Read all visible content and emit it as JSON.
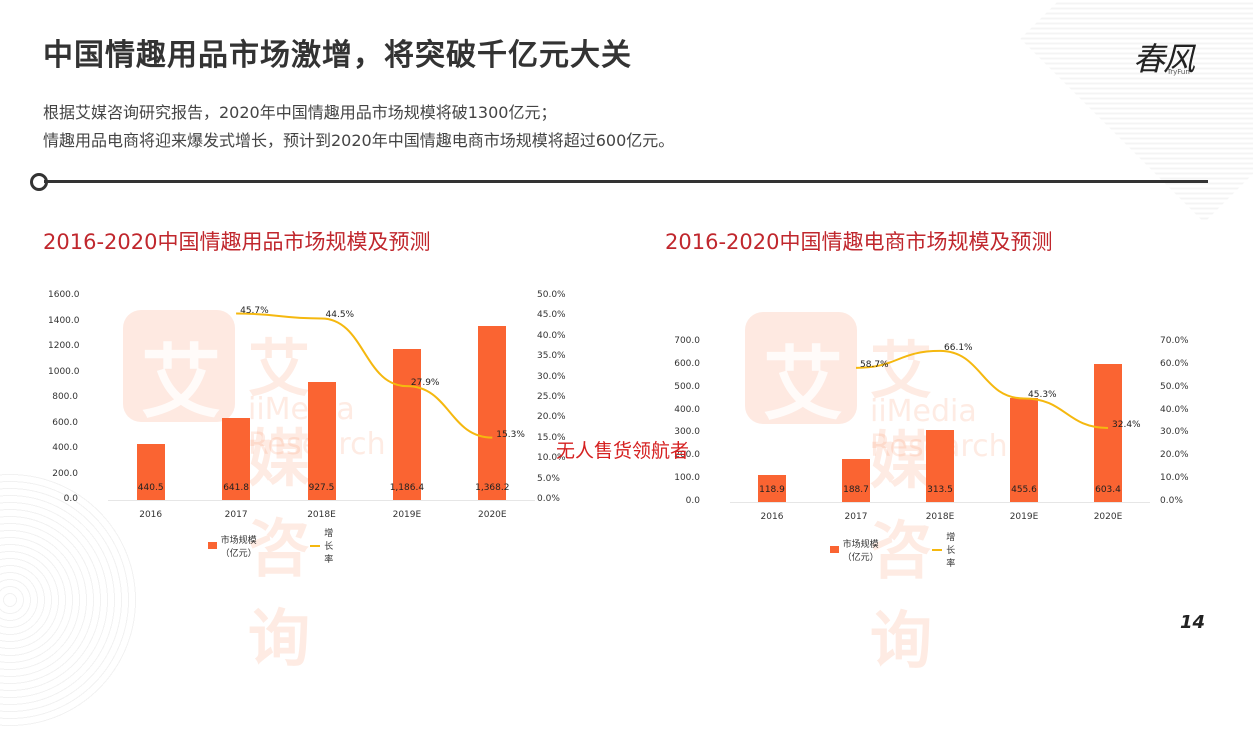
{
  "page": {
    "title": "中国情趣用品市场激增，将突破千亿元大关",
    "subtitle_lines": [
      "根据艾媒咨询研究报告，2020年中国情趣用品市场规模将破1300亿元；",
      "情趣用品电商将迎来爆发式增长，预计到2020年中国情趣电商市场规模将超过600亿元。"
    ],
    "logo": {
      "cn": "春风",
      "en": "TryFun"
    },
    "overlay_text": "无人售货领航者",
    "page_number": "14"
  },
  "watermark": {
    "cn": "艾媒咨询",
    "en": "iiMedia Research",
    "badge": "艾"
  },
  "chart_data": [
    {
      "type": "bar+line",
      "title": "2016-2020中国情趣用品市场规模及预测",
      "categories": [
        "2016",
        "2017",
        "2018E",
        "2019E",
        "2020E"
      ],
      "series": [
        {
          "name": "市场规模（亿元）",
          "type": "bar",
          "axis": "left",
          "color": "#fa6432",
          "values": [
            440.5,
            641.8,
            927.5,
            1186.4,
            1368.2
          ],
          "labels": [
            "440.5",
            "641.8",
            "927.5",
            "1,186.4",
            "1,368.2"
          ]
        },
        {
          "name": "增长率",
          "type": "line",
          "axis": "right",
          "color": "#f5b80f",
          "values": [
            null,
            45.7,
            44.5,
            27.9,
            15.3
          ],
          "labels": [
            "",
            "45.7%",
            "44.5%",
            "27.9%",
            "15.3%"
          ]
        }
      ],
      "y_left": {
        "ticks": [
          "0.0",
          "200.0",
          "400.0",
          "600.0",
          "800.0",
          "1000.0",
          "1200.0",
          "1400.0",
          "1600.0"
        ],
        "range": [
          0,
          1600
        ]
      },
      "y_right": {
        "ticks": [
          "0.0%",
          "5.0%",
          "10.0%",
          "15.0%",
          "20.0%",
          "25.0%",
          "30.0%",
          "35.0%",
          "40.0%",
          "45.0%",
          "50.0%"
        ],
        "range": [
          0,
          50
        ]
      },
      "legend_position": "bottom"
    },
    {
      "type": "bar+line",
      "title": "2016-2020中国情趣电商市场规模及预测",
      "categories": [
        "2016",
        "2017",
        "2018E",
        "2019E",
        "2020E"
      ],
      "series": [
        {
          "name": "市场规模（亿元）",
          "type": "bar",
          "axis": "left",
          "color": "#fa6432",
          "values": [
            118.9,
            188.7,
            313.5,
            455.6,
            603.4
          ],
          "labels": [
            "118.9",
            "188.7",
            "313.5",
            "455.6",
            "603.4"
          ]
        },
        {
          "name": "增长率",
          "type": "line",
          "axis": "right",
          "color": "#f5b80f",
          "values": [
            null,
            58.7,
            66.1,
            45.3,
            32.4
          ],
          "labels": [
            "",
            "58.7%",
            "66.1%",
            "45.3%",
            "32.4%"
          ]
        }
      ],
      "y_left": {
        "ticks": [
          "0.0",
          "100.0",
          "200.0",
          "300.0",
          "400.0",
          "500.0",
          "600.0",
          "700.0"
        ],
        "range": [
          0,
          700
        ]
      },
      "y_right": {
        "ticks": [
          "0.0%",
          "10.0%",
          "20.0%",
          "30.0%",
          "40.0%",
          "50.0%",
          "60.0%",
          "70.0%"
        ],
        "range": [
          0,
          70
        ]
      },
      "legend_position": "bottom"
    }
  ]
}
